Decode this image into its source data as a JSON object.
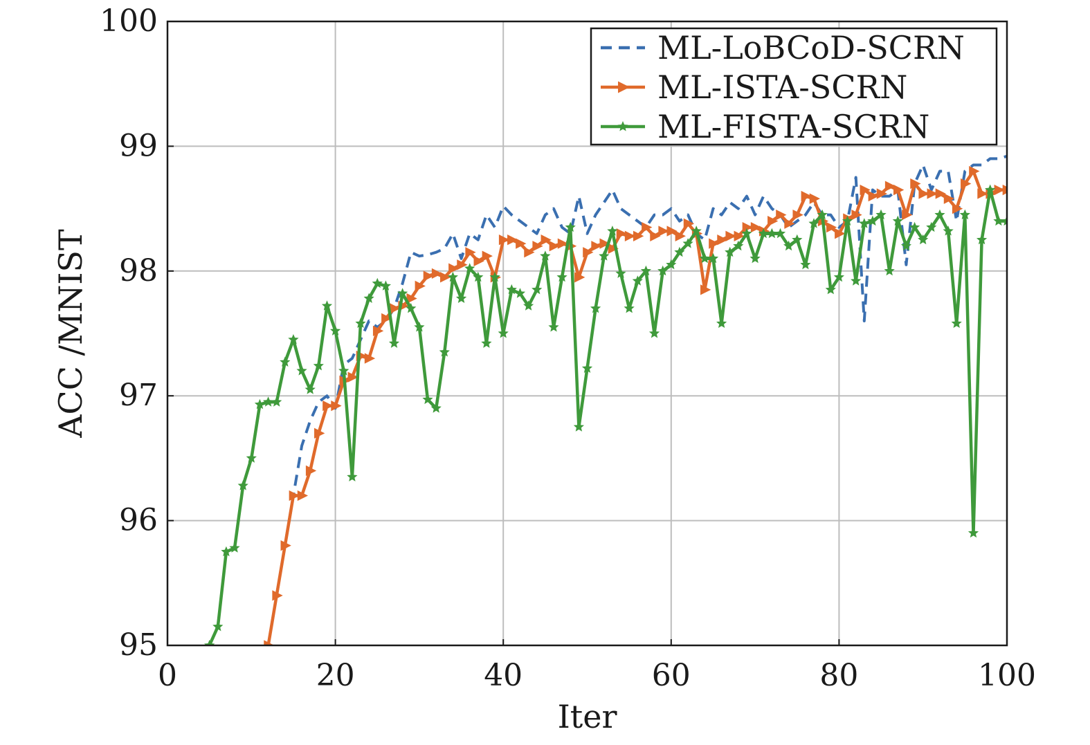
{
  "chart_data": {
    "type": "line",
    "xlabel": "Iter",
    "ylabel": "ACC /MNIST",
    "xlim": [
      0,
      100
    ],
    "ylim": [
      95,
      100
    ],
    "xticks": [
      "0",
      "20",
      "40",
      "60",
      "80",
      "100"
    ],
    "yticks": [
      "95",
      "96",
      "97",
      "98",
      "99",
      "100"
    ],
    "grid": true,
    "legend_position": "top-right",
    "series": [
      {
        "name": "ML-LoBCoD-SCRN",
        "color": "#3a6fb0",
        "style": "dashed",
        "marker": "none",
        "x": [
          12,
          13,
          14,
          15,
          16,
          17,
          18,
          19,
          20,
          21,
          22,
          23,
          24,
          25,
          26,
          27,
          28,
          29,
          30,
          31,
          32,
          33,
          34,
          35,
          36,
          37,
          38,
          39,
          40,
          41,
          42,
          43,
          44,
          45,
          46,
          47,
          48,
          49,
          50,
          51,
          52,
          53,
          54,
          55,
          56,
          57,
          58,
          59,
          60,
          61,
          62,
          63,
          64,
          65,
          66,
          67,
          68,
          69,
          70,
          71,
          72,
          73,
          74,
          75,
          76,
          77,
          78,
          79,
          80,
          81,
          82,
          83,
          84,
          85,
          86,
          87,
          88,
          89,
          90,
          91,
          92,
          93,
          94,
          95,
          96,
          97,
          98,
          99,
          100
        ],
        "y": [
          95.0,
          95.4,
          95.8,
          96.2,
          96.6,
          96.8,
          96.95,
          97.0,
          96.9,
          97.25,
          97.3,
          97.45,
          97.6,
          97.55,
          97.6,
          97.7,
          97.9,
          98.15,
          98.12,
          98.13,
          98.15,
          98.18,
          98.3,
          98.1,
          98.3,
          98.25,
          98.45,
          98.35,
          98.52,
          98.45,
          98.4,
          98.35,
          98.3,
          98.45,
          98.5,
          98.35,
          98.3,
          98.6,
          98.3,
          98.45,
          98.55,
          98.65,
          98.5,
          98.45,
          98.4,
          98.35,
          98.45,
          98.45,
          98.5,
          98.4,
          98.45,
          98.3,
          98.25,
          98.5,
          98.45,
          98.55,
          98.5,
          98.6,
          98.45,
          98.6,
          98.5,
          98.45,
          98.35,
          98.4,
          98.45,
          98.55,
          98.45,
          98.45,
          98.35,
          98.4,
          98.75,
          97.6,
          98.65,
          98.6,
          98.6,
          98.65,
          98.05,
          98.7,
          98.85,
          98.65,
          98.8,
          98.8,
          98.4,
          98.8,
          98.85,
          98.85,
          98.9,
          98.9,
          98.92
        ]
      },
      {
        "name": "ML-ISTA-SCRN",
        "color": "#e06a2b",
        "style": "solid",
        "marker": "triangle-right",
        "x": [
          12,
          13,
          14,
          15,
          16,
          17,
          18,
          19,
          20,
          21,
          22,
          23,
          24,
          25,
          26,
          27,
          28,
          29,
          30,
          31,
          32,
          33,
          34,
          35,
          36,
          37,
          38,
          39,
          40,
          41,
          42,
          43,
          44,
          45,
          46,
          47,
          48,
          49,
          50,
          51,
          52,
          53,
          54,
          55,
          56,
          57,
          58,
          59,
          60,
          61,
          62,
          63,
          64,
          65,
          66,
          67,
          68,
          69,
          70,
          71,
          72,
          73,
          74,
          75,
          76,
          77,
          78,
          79,
          80,
          81,
          82,
          83,
          84,
          85,
          86,
          87,
          88,
          89,
          90,
          91,
          92,
          93,
          94,
          95,
          96,
          97,
          98,
          99,
          100
        ],
        "y": [
          95.0,
          95.4,
          95.8,
          96.2,
          96.2,
          96.4,
          96.7,
          96.92,
          96.92,
          97.12,
          97.15,
          97.32,
          97.3,
          97.52,
          97.62,
          97.7,
          97.72,
          97.78,
          97.88,
          97.96,
          97.98,
          97.95,
          98.02,
          98.05,
          98.15,
          98.08,
          98.12,
          97.95,
          98.25,
          98.25,
          98.22,
          98.15,
          98.2,
          98.25,
          98.2,
          98.22,
          98.2,
          97.95,
          98.15,
          98.2,
          98.22,
          98.18,
          98.3,
          98.28,
          98.28,
          98.35,
          98.28,
          98.32,
          98.32,
          98.28,
          98.38,
          98.3,
          97.85,
          98.22,
          98.25,
          98.28,
          98.28,
          98.35,
          98.35,
          98.32,
          98.4,
          98.45,
          98.38,
          98.45,
          98.6,
          98.58,
          98.4,
          98.35,
          98.3,
          98.42,
          98.45,
          98.65,
          98.6,
          98.62,
          98.68,
          98.65,
          98.45,
          98.7,
          98.62,
          98.62,
          98.62,
          98.58,
          98.5,
          98.7,
          98.8,
          98.62,
          98.62,
          98.65,
          98.65
        ]
      },
      {
        "name": "ML-FISTA-SCRN",
        "color": "#3f9a3b",
        "style": "solid",
        "marker": "star",
        "x": [
          5,
          6,
          7,
          8,
          9,
          10,
          11,
          12,
          13,
          14,
          15,
          16,
          17,
          18,
          19,
          20,
          21,
          22,
          23,
          24,
          25,
          26,
          27,
          28,
          29,
          30,
          31,
          32,
          33,
          34,
          35,
          36,
          37,
          38,
          39,
          40,
          41,
          42,
          43,
          44,
          45,
          46,
          47,
          48,
          49,
          50,
          51,
          52,
          53,
          54,
          55,
          56,
          57,
          58,
          59,
          60,
          61,
          62,
          63,
          64,
          65,
          66,
          67,
          68,
          69,
          70,
          71,
          72,
          73,
          74,
          75,
          76,
          77,
          78,
          79,
          80,
          81,
          82,
          83,
          84,
          85,
          86,
          87,
          88,
          89,
          90,
          91,
          92,
          93,
          94,
          95,
          96,
          97,
          98,
          99,
          100
        ],
        "y": [
          95.0,
          95.15,
          95.75,
          95.78,
          96.28,
          96.5,
          96.93,
          96.95,
          96.95,
          97.27,
          97.45,
          97.2,
          97.05,
          97.24,
          97.72,
          97.52,
          97.2,
          96.35,
          97.58,
          97.78,
          97.9,
          97.88,
          97.42,
          97.82,
          97.7,
          97.55,
          96.97,
          96.9,
          97.35,
          97.95,
          97.78,
          98.02,
          97.95,
          97.42,
          97.95,
          97.5,
          97.85,
          97.82,
          97.72,
          97.85,
          98.12,
          97.55,
          97.95,
          98.35,
          96.75,
          97.22,
          97.7,
          98.12,
          98.32,
          97.98,
          97.7,
          97.92,
          98.0,
          97.5,
          98.0,
          98.05,
          98.15,
          98.22,
          98.32,
          98.1,
          98.1,
          97.58,
          98.15,
          98.2,
          98.3,
          98.1,
          98.3,
          98.3,
          98.3,
          98.2,
          98.25,
          98.05,
          98.38,
          98.45,
          97.85,
          97.95,
          98.4,
          97.92,
          98.38,
          98.4,
          98.45,
          98.0,
          98.4,
          98.2,
          98.35,
          98.25,
          98.35,
          98.45,
          98.32,
          97.58,
          98.45,
          95.9,
          98.25,
          98.65,
          98.4,
          98.4
        ]
      }
    ]
  }
}
